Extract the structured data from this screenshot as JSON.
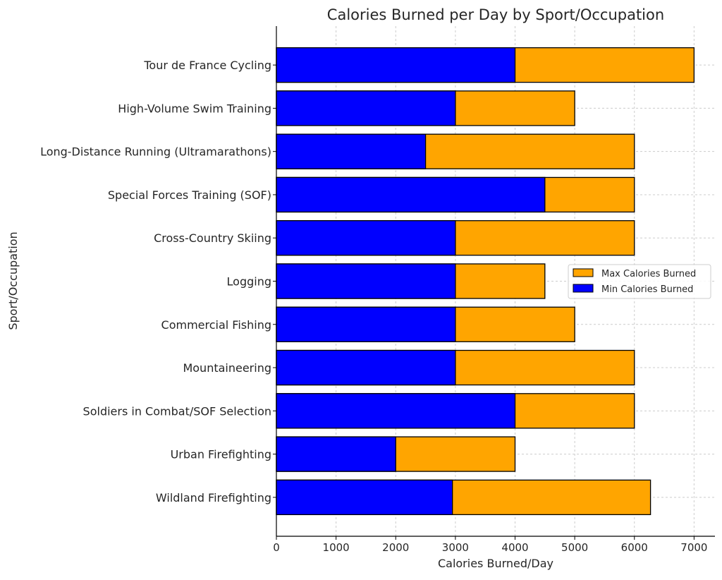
{
  "chart_data": {
    "type": "bar",
    "orientation": "horizontal",
    "title": "Calories Burned per Day by Sport/Occupation",
    "xlabel": "Calories Burned/Day",
    "ylabel": "Sport/Occupation",
    "xlim": [
      0,
      7350
    ],
    "xticks": [
      0,
      1000,
      2000,
      3000,
      4000,
      5000,
      6000,
      7000
    ],
    "grid": true,
    "legend_position": "center-right",
    "categories": [
      "Wildland Firefighting",
      "Urban Firefighting",
      "Soldiers in Combat/SOF Selection",
      "Mountaineering",
      "Commercial Fishing",
      "Logging",
      "Cross-Country Skiing",
      "Special Forces Training (SOF)",
      "Long-Distance Running (Ultramarathons)",
      "High-Volume Swim Training",
      "Tour de France Cycling"
    ],
    "series": [
      {
        "name": "Max Calories Burned",
        "color": "#FFA500",
        "values": [
          6270,
          4000,
          6000,
          6000,
          5000,
          4500,
          6000,
          6000,
          6000,
          5000,
          7000
        ]
      },
      {
        "name": "Min Calories Burned",
        "color": "#0000FF",
        "values": [
          2950,
          2000,
          4000,
          3000,
          3000,
          3000,
          3000,
          4500,
          2500,
          3000,
          4000
        ]
      }
    ]
  }
}
